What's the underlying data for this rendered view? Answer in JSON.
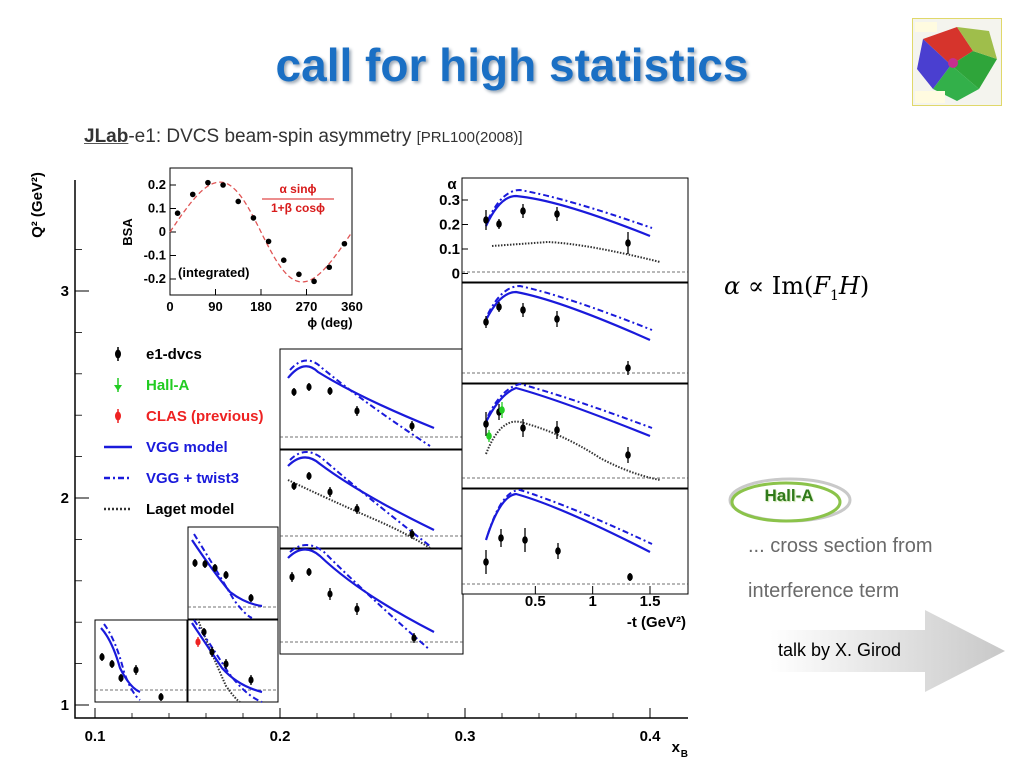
{
  "slide": {
    "title": "call for high statistics",
    "subtitle_lab": "JLab",
    "subtitle_main": "-e1: DVCS beam-spin asymmetry ",
    "subtitle_ref": "[PRL100(2008)]",
    "formula_alpha": "α",
    "formula_propto": " ∝ ",
    "formula_im": "Im(",
    "formula_F": "F",
    "formula_sub": "1",
    "formula_H": "H",
    "formula_close": ")",
    "halla_badge": "Hall-A",
    "note_line1": "... cross section from",
    "note_line2": "interference term",
    "talk": "talk by X. Girod",
    "logo_icon": "detector-logo-icon",
    "colors": {
      "title": "#1a6fc4",
      "badge": "#8bc34a",
      "arrow": "#d9d9d9"
    }
  },
  "chart_data": [
    {
      "type": "scatter",
      "name": "kinematic-map",
      "xlabel": "x_B",
      "ylabel": "Q² (GeV²)",
      "xticks": [
        "0.1",
        "0.2",
        "0.3",
        "0.4"
      ],
      "yticks": [
        "1",
        "2",
        "3"
      ],
      "xlim": [
        0.1,
        0.42
      ],
      "ylim": [
        1,
        3.5
      ],
      "legend": {
        "placement": "left",
        "entries": [
          {
            "label": "e1-dvcs",
            "color": "#000000",
            "style": "marker"
          },
          {
            "label": "Hall-A",
            "color": "#22cc22",
            "style": "marker"
          },
          {
            "label": "CLAS (previous)",
            "color": "#ee2222",
            "style": "marker"
          },
          {
            "label": "VGG model",
            "color": "#1a1adb",
            "style": "solid"
          },
          {
            "label": "VGG + twist3",
            "color": "#1a1adb",
            "style": "dashdot"
          },
          {
            "label": "Laget model",
            "color": "#333333",
            "style": "dotted"
          }
        ]
      }
    },
    {
      "type": "scatter",
      "name": "inset-bsa",
      "xlabel": "ϕ (deg)",
      "ylabel": "BSA",
      "xticks": [
        "0",
        "90",
        "180",
        "270",
        "360"
      ],
      "yticks": [
        "0.2",
        "0.1",
        "0",
        "-0.1",
        "-0.2"
      ],
      "xlim": [
        0,
        360
      ],
      "ylim": [
        -0.25,
        0.25
      ],
      "annotation": "(integrated)",
      "fit_label_num": "α sinϕ",
      "fit_label_den": "1+β cosϕ",
      "points": {
        "x": [
          15,
          45,
          75,
          105,
          135,
          165,
          195,
          225,
          255,
          285,
          315,
          345
        ],
        "y": [
          0.08,
          0.16,
          0.21,
          0.2,
          0.13,
          0.06,
          -0.04,
          -0.12,
          -0.18,
          -0.21,
          -0.15,
          -0.05
        ]
      }
    },
    {
      "type": "line",
      "name": "alpha-vs-t-panels",
      "xlabel": "-t (GeV²)",
      "ylabel": "α",
      "xticks": [
        "0.5",
        "1",
        "1.5"
      ],
      "yticks": [
        "0.3",
        "0.2",
        "0.1",
        "0"
      ],
      "xlim": [
        0,
        1.7
      ],
      "ylim": [
        0,
        0.35
      ]
    }
  ]
}
